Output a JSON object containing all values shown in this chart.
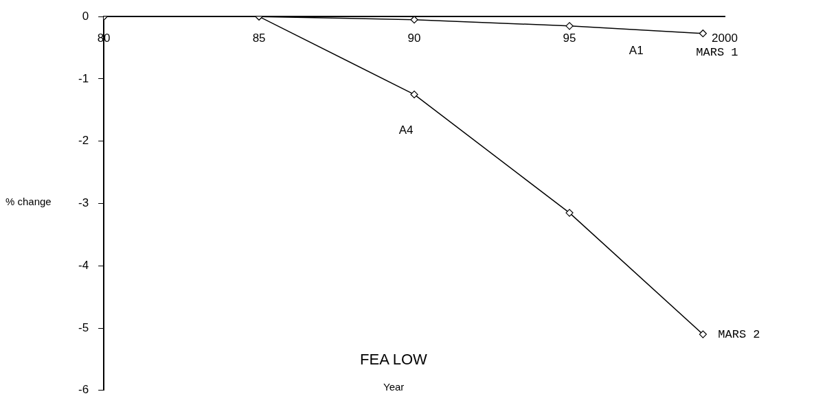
{
  "chart_data": {
    "type": "line",
    "title": "FEA LOW",
    "xlabel": "Year",
    "ylabel": "% change",
    "xlim": [
      1980,
      2000
    ],
    "ylim": [
      -6,
      0
    ],
    "xticks": [
      {
        "value": 1980,
        "label": "80"
      },
      {
        "value": 1985,
        "label": "85"
      },
      {
        "value": 1990,
        "label": "90"
      },
      {
        "value": 1995,
        "label": "95"
      },
      {
        "value": 2000,
        "label": "2000"
      }
    ],
    "yticks": [
      0,
      -1,
      -2,
      -3,
      -4,
      -5,
      -6
    ],
    "series": [
      {
        "name": "A1",
        "color": "#000000",
        "x": [
          1980,
          1985,
          1990,
          1995,
          1999.3
        ],
        "values": [
          0,
          0,
          -0.05,
          -0.15,
          -0.27
        ]
      },
      {
        "name": "A4",
        "color": "#000000",
        "x": [
          1980,
          1985,
          1990,
          1995,
          1999.3
        ],
        "values": [
          0,
          0,
          -1.25,
          -3.15,
          -5.1
        ]
      }
    ],
    "annotations": [
      {
        "text": "MARS 1",
        "x": 1999.3,
        "y": -0.27
      },
      {
        "text": "MARS 2",
        "x": 1999.3,
        "y": -5.1
      }
    ],
    "grid": false,
    "legend": false,
    "marker": "diamond",
    "line_style": "solid"
  }
}
